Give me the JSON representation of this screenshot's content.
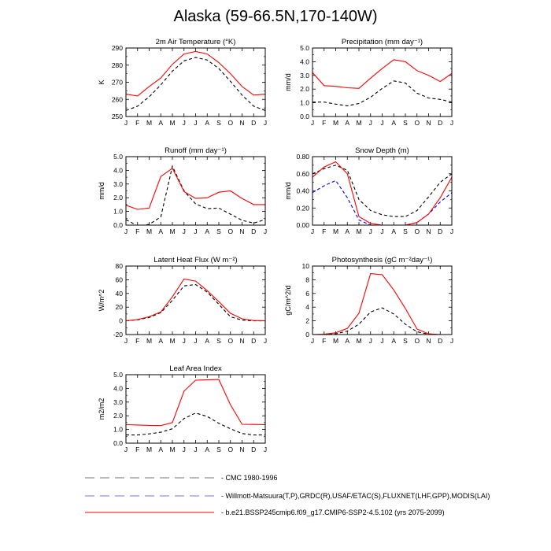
{
  "title": "Alaska (59-66.5N,170-140W)",
  "months": [
    "J",
    "F",
    "M",
    "A",
    "M",
    "J",
    "J",
    "A",
    "S",
    "O",
    "N",
    "D",
    "J"
  ],
  "colors": {
    "cmc": "#000000",
    "obs": "#0000ff",
    "model": "#ff0000"
  },
  "legend": [
    {
      "key": "cmc",
      "label": "CMC 1980-1996",
      "color": "#000000",
      "dash": "dashed"
    },
    {
      "key": "obs",
      "label": "Willmott-Matsuura(T,P),GRDC(R),USAF/ETAC(S),FLUXNET(LHF,GPP),MODIS(LAI)",
      "color": "#0000ff",
      "dash": "dashed"
    },
    {
      "key": "model",
      "label": "b.e21.BSSP245cmip6.f09_g17.CMIP6-SSP2-4.5.102 (yrs 2075-2099)",
      "color": "#ff0000",
      "dash": "solid"
    }
  ],
  "chart_data": [
    {
      "type": "line",
      "title": "2m Air Temperature (°K)",
      "ylabel": "K",
      "ylim": [
        250,
        290
      ],
      "yticks": [
        250,
        260,
        270,
        280,
        290
      ],
      "yticklabels": [
        "250",
        "260",
        "270",
        "280",
        "290"
      ],
      "series": [
        {
          "name": "model",
          "values": [
            263,
            262,
            267.5,
            272.5,
            280.5,
            286.5,
            288,
            286.5,
            281.5,
            275,
            267.5,
            262.5,
            263
          ]
        },
        {
          "name": "cmc",
          "values": [
            253.5,
            256,
            261.5,
            268.5,
            276.5,
            282.5,
            284.5,
            283,
            278,
            270.5,
            262.5,
            256,
            253.5
          ]
        }
      ]
    },
    {
      "type": "line",
      "title": "Precipitation (mm day⁻¹)",
      "ylabel": "mm/d",
      "ylim": [
        0,
        5
      ],
      "yticks": [
        0,
        1,
        2,
        3,
        4,
        5
      ],
      "yticklabels": [
        "0.0",
        "1.0",
        "2.0",
        "3.0",
        "4.0",
        "5.0"
      ],
      "series": [
        {
          "name": "model",
          "values": [
            3.2,
            2.25,
            2.2,
            2.1,
            2.05,
            2.8,
            3.5,
            4.15,
            4.0,
            3.35,
            3.0,
            2.55,
            3.15
          ]
        },
        {
          "name": "cmc",
          "values": [
            1.05,
            1.05,
            0.9,
            0.78,
            0.95,
            1.4,
            2.05,
            2.6,
            2.45,
            1.7,
            1.35,
            1.25,
            1.05
          ]
        }
      ]
    },
    {
      "type": "line",
      "title": "Runoff (mm day⁻¹)",
      "ylabel": "mm/d",
      "ylim": [
        0,
        5
      ],
      "yticks": [
        0,
        1,
        2,
        3,
        4,
        5
      ],
      "yticklabels": [
        "0.0",
        "1.0",
        "2.0",
        "3.0",
        "4.0",
        "5.0"
      ],
      "series": [
        {
          "name": "model",
          "values": [
            1.45,
            1.15,
            1.25,
            3.55,
            4.15,
            2.45,
            1.95,
            2.0,
            2.4,
            2.5,
            1.95,
            1.5,
            1.5
          ]
        },
        {
          "name": "cmc",
          "values": [
            0.4,
            -0.05,
            0.05,
            0.6,
            4.3,
            2.5,
            1.55,
            1.2,
            1.25,
            0.8,
            0.35,
            0.15,
            0.4
          ]
        }
      ]
    },
    {
      "type": "line",
      "title": "Snow Depth (m)",
      "ylabel": "mm/d",
      "ylim": [
        0,
        0.8
      ],
      "yticks": [
        0,
        0.2,
        0.4,
        0.6,
        0.8
      ],
      "yticklabels": [
        "0.00",
        "0.20",
        "0.40",
        "0.60",
        "0.80"
      ],
      "series": [
        {
          "name": "model",
          "values": [
            0.56,
            0.68,
            0.74,
            0.6,
            0.1,
            0.02,
            0.0,
            0.0,
            0.0,
            0.03,
            0.13,
            0.32,
            0.56
          ]
        },
        {
          "name": "cmc",
          "values": [
            0.6,
            0.66,
            0.7,
            0.64,
            0.3,
            0.17,
            0.12,
            0.1,
            0.1,
            0.17,
            0.33,
            0.5,
            0.6
          ]
        },
        {
          "name": "obs",
          "values": [
            0.38,
            0.46,
            0.52,
            0.32,
            0.06,
            0.0,
            0.0,
            0.0,
            0.0,
            0.03,
            0.13,
            0.27,
            0.38
          ]
        }
      ]
    },
    {
      "type": "line",
      "title": "Latent Heat Flux (W m⁻²)",
      "ylabel": "W/m^2",
      "ylim": [
        -20,
        80
      ],
      "yticks": [
        -20,
        0,
        20,
        40,
        60,
        80
      ],
      "yticklabels": [
        "-20",
        "0",
        "20",
        "40",
        "60",
        "80"
      ],
      "series": [
        {
          "name": "model",
          "values": [
            0,
            2,
            6,
            13,
            35,
            61,
            58,
            44,
            28,
            11,
            3,
            0.5,
            0
          ]
        },
        {
          "name": "cmc",
          "values": [
            0,
            1.5,
            5,
            12,
            30,
            51,
            53,
            42,
            24,
            6,
            1,
            0,
            0
          ]
        }
      ]
    },
    {
      "type": "line",
      "title": "Photosynthesis (gC m⁻²day⁻¹)",
      "ylabel": "gC/m^2/d",
      "ylim": [
        0,
        10
      ],
      "yticks": [
        0,
        2,
        4,
        6,
        8,
        10
      ],
      "yticklabels": [
        "0",
        "2",
        "4",
        "6",
        "8",
        "10"
      ],
      "series": [
        {
          "name": "model",
          "values": [
            0,
            0.05,
            0.25,
            0.9,
            3.1,
            8.9,
            8.75,
            6.5,
            3.8,
            0.8,
            0.1,
            0,
            0
          ]
        },
        {
          "name": "cmc",
          "values": [
            0,
            0,
            0.1,
            0.5,
            1.5,
            3.3,
            3.9,
            3.0,
            1.5,
            0.4,
            0.05,
            0,
            0
          ]
        }
      ]
    },
    {
      "type": "line",
      "title": "Leaf Area Index",
      "ylabel": "m2/m2",
      "ylim": [
        0,
        5
      ],
      "yticks": [
        0,
        1,
        2,
        3,
        4,
        5
      ],
      "yticklabels": [
        "0.0",
        "1.0",
        "2.0",
        "3.0",
        "4.0",
        "5.0"
      ],
      "series": [
        {
          "name": "model",
          "values": [
            1.35,
            1.33,
            1.3,
            1.28,
            1.5,
            3.8,
            4.6,
            4.62,
            4.65,
            2.8,
            1.38,
            1.37,
            1.35
          ]
        },
        {
          "name": "cmc",
          "values": [
            0.6,
            0.6,
            0.68,
            0.8,
            1.05,
            1.8,
            2.2,
            1.95,
            1.45,
            1.05,
            0.7,
            0.6,
            0.6
          ]
        }
      ]
    }
  ]
}
